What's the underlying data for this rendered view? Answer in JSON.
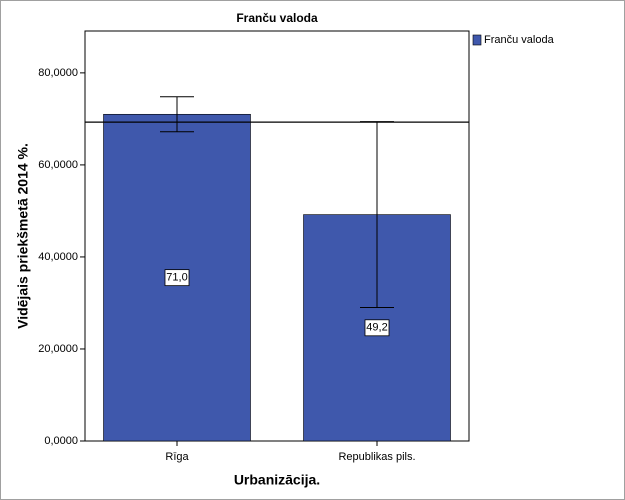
{
  "chart_data": {
    "type": "bar",
    "title": "Franču valoda",
    "x_label": "Urbanizācija.",
    "y_label": "Vidējais priekšmetā 2014 %.",
    "categories": [
      "Rīga",
      "Republikas pils."
    ],
    "series": [
      {
        "name": "Franču valoda",
        "color": "#3f58ac",
        "values": [
          71.0,
          49.2
        ],
        "value_labels": [
          "71,0",
          "49,2"
        ],
        "errors": [
          3.8,
          20.2
        ]
      }
    ],
    "reference_line": 69.3,
    "ylim": [
      0,
      89.1
    ],
    "yticks": [
      {
        "value": 0,
        "label": "0,0000"
      },
      {
        "value": 20,
        "label": "20,0000"
      },
      {
        "value": 40,
        "label": "40,0000"
      },
      {
        "value": 60,
        "label": "60,0000"
      },
      {
        "value": 80,
        "label": "80,0000"
      }
    ],
    "legend": "top-right"
  }
}
